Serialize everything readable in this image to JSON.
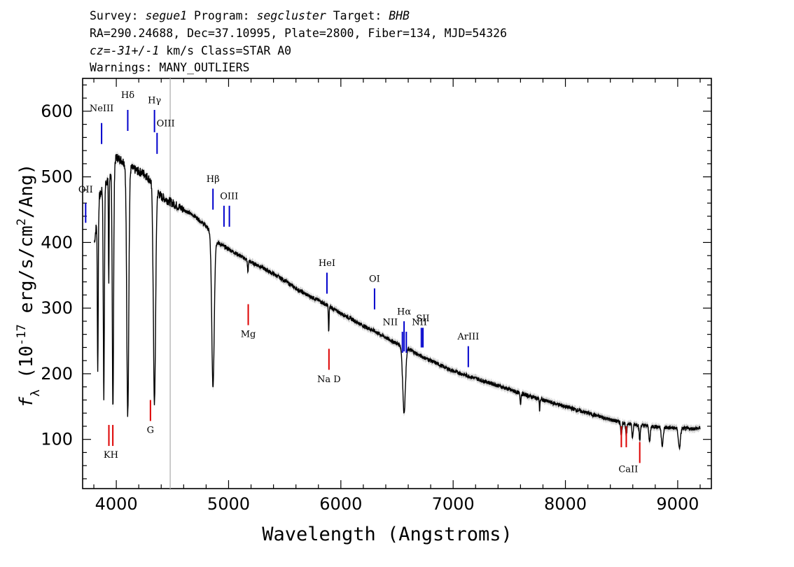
{
  "header": {
    "line1": {
      "survey_label": "Survey: ",
      "survey": "segue1",
      "program_label": " Program: ",
      "program": "segcluster",
      "target_label": " Target: ",
      "target": "BHB"
    },
    "line2": "RA=290.24688, Dec=37.10995, Plate=2800, Fiber=134, MJD=54326",
    "line3": {
      "cz": "cz=-31+/-1",
      "rest": " km/s Class=STAR A0"
    },
    "line4": "Warnings: MANY_OUTLIERS"
  },
  "chart_data": {
    "type": "line",
    "xlabel": "Wavelength (Angstroms)",
    "ylabel": "f_λ (10^-17 erg/s/cm^2/Ang)",
    "xlim": [
      3700,
      9300
    ],
    "ylim": [
      25,
      650
    ],
    "x_ticks": [
      4000,
      5000,
      6000,
      7000,
      8000,
      9000
    ],
    "y_ticks": [
      100,
      200,
      300,
      400,
      500,
      600
    ],
    "grid": false,
    "vertical_marker": 4480,
    "spectrum": {
      "continuum": [
        [
          3805,
          400
        ],
        [
          3850,
          470
        ],
        [
          3900,
          490
        ],
        [
          3960,
          505
        ],
        [
          4000,
          530
        ],
        [
          4050,
          525
        ],
        [
          4100,
          518
        ],
        [
          4150,
          512
        ],
        [
          4200,
          508
        ],
        [
          4250,
          505
        ],
        [
          4300,
          495
        ],
        [
          4400,
          470
        ],
        [
          4500,
          460
        ],
        [
          4600,
          450
        ],
        [
          4700,
          440
        ],
        [
          4800,
          425
        ],
        [
          4900,
          400
        ],
        [
          5000,
          390
        ],
        [
          5100,
          380
        ],
        [
          5200,
          370
        ],
        [
          5300,
          362
        ],
        [
          5400,
          352
        ],
        [
          5500,
          342
        ],
        [
          5600,
          330
        ],
        [
          5700,
          320
        ],
        [
          5800,
          312
        ],
        [
          5900,
          302
        ],
        [
          6000,
          292
        ],
        [
          6100,
          283
        ],
        [
          6200,
          273
        ],
        [
          6300,
          265
        ],
        [
          6400,
          255
        ],
        [
          6500,
          246
        ],
        [
          6600,
          238
        ],
        [
          6700,
          228
        ],
        [
          6800,
          220
        ],
        [
          7000,
          204
        ],
        [
          7200,
          193
        ],
        [
          7400,
          182
        ],
        [
          7600,
          170
        ],
        [
          7800,
          160
        ],
        [
          8000,
          150
        ],
        [
          8200,
          140
        ],
        [
          8400,
          130
        ],
        [
          8500,
          126
        ],
        [
          8700,
          121
        ],
        [
          8900,
          118
        ],
        [
          9100,
          116
        ],
        [
          9200,
          117
        ]
      ],
      "absorption_lines": [
        {
          "center": 3835,
          "depth": 240,
          "width": 4
        },
        {
          "center": 3889,
          "depth": 320,
          "width": 5
        },
        {
          "center": 3933,
          "depth": 160,
          "width": 3
        },
        {
          "center": 3970,
          "depth": 360,
          "width": 6
        },
        {
          "center": 4102,
          "depth": 380,
          "width": 9
        },
        {
          "center": 4340,
          "depth": 330,
          "width": 10
        },
        {
          "center": 4861,
          "depth": 230,
          "width": 11
        },
        {
          "center": 5172,
          "depth": 18,
          "width": 4
        },
        {
          "center": 5892,
          "depth": 40,
          "width": 3
        },
        {
          "center": 6563,
          "depth": 100,
          "width": 12
        },
        {
          "center": 7600,
          "depth": 15,
          "width": 4
        },
        {
          "center": 7770,
          "depth": 18,
          "width": 3
        },
        {
          "center": 8498,
          "depth": 20,
          "width": 5
        },
        {
          "center": 8542,
          "depth": 22,
          "width": 5
        },
        {
          "center": 8598,
          "depth": 23,
          "width": 5
        },
        {
          "center": 8662,
          "depth": 24,
          "width": 5
        },
        {
          "center": 8750,
          "depth": 25,
          "width": 6
        },
        {
          "center": 8863,
          "depth": 28,
          "width": 8
        },
        {
          "center": 9015,
          "depth": 30,
          "width": 9
        }
      ]
    },
    "emission_markers": [
      {
        "label": "NeIII",
        "x": 3869,
        "y0": 550,
        "y1": 582,
        "lx": 3869,
        "ly": 600
      },
      {
        "label": "Hδ",
        "x": 4102,
        "y0": 570,
        "y1": 602,
        "lx": 4102,
        "ly": 620
      },
      {
        "label": "Hγ",
        "x": 4340,
        "y0": 568,
        "y1": 602,
        "lx": 4340,
        "ly": 612
      },
      {
        "label": "OIII",
        "x": 4363,
        "y0": 535,
        "y1": 567,
        "lx": 4440,
        "ly": 577
      },
      {
        "label": "OII",
        "x": 3727,
        "y0": 430,
        "y1": 460,
        "lx": 3727,
        "ly": 476
      },
      {
        "label": "Hβ",
        "x": 4861,
        "y0": 450,
        "y1": 482,
        "lx": 4861,
        "ly": 492
      },
      {
        "label": "OIII",
        "x": 4959,
        "y0": 424,
        "y1": 456,
        "lx": 5005,
        "ly": 466
      },
      {
        "label": "OIII",
        "x": 5007,
        "y0": 424,
        "y1": 456,
        "lx": null,
        "ly": null
      },
      {
        "label": "HeI",
        "x": 5876,
        "y0": 322,
        "y1": 354,
        "lx": 5876,
        "ly": 364
      },
      {
        "label": "OI",
        "x": 6300,
        "y0": 298,
        "y1": 330,
        "lx": 6300,
        "ly": 340
      },
      {
        "label": "NII",
        "x": 6548,
        "y0": 232,
        "y1": 264,
        "lx": 6440,
        "ly": 274
      },
      {
        "label": "Hα",
        "x": 6563,
        "y0": 234,
        "y1": 280,
        "lx": 6563,
        "ly": 290
      },
      {
        "label": "NII",
        "x": 6583,
        "y0": 232,
        "y1": 264,
        "lx": 6700,
        "ly": 274
      },
      {
        "label": "SII",
        "x": 6717,
        "y0": 240,
        "y1": 270,
        "lx": 6730,
        "ly": 280
      },
      {
        "label": "SII",
        "x": 6731,
        "y0": 240,
        "y1": 270,
        "lx": null,
        "ly": null
      },
      {
        "label": "ArIII",
        "x": 7135,
        "y0": 210,
        "y1": 242,
        "lx": 7135,
        "ly": 252
      }
    ],
    "absorption_markers": [
      {
        "label": "KH",
        "x": 3934,
        "y0": 90,
        "y1": 122,
        "lx": 3952,
        "ly": 72
      },
      {
        "label": "KH",
        "x": 3969,
        "y0": 90,
        "y1": 122,
        "lx": null,
        "ly": null
      },
      {
        "label": "G",
        "x": 4304,
        "y0": 128,
        "y1": 160,
        "lx": 4304,
        "ly": 110
      },
      {
        "label": "Mg",
        "x": 5175,
        "y0": 274,
        "y1": 306,
        "lx": 5175,
        "ly": 256
      },
      {
        "label": "Na D",
        "x": 5894,
        "y0": 206,
        "y1": 238,
        "lx": 5894,
        "ly": 187
      },
      {
        "label": "CaII",
        "x": 8498,
        "y0": 88,
        "y1": 120,
        "lx": 8560,
        "ly": 50
      },
      {
        "label": "CaII",
        "x": 8542,
        "y0": 88,
        "y1": 120,
        "lx": null,
        "ly": null
      },
      {
        "label": "CaII",
        "x": 8662,
        "y0": 64,
        "y1": 96,
        "lx": null,
        "ly": null
      }
    ],
    "colors": {
      "emission": "#0000cc",
      "absorption": "#dd0000",
      "spectrum": "#000000",
      "marker": "#bbbbbb",
      "error_band": "#aaaaaa"
    }
  }
}
